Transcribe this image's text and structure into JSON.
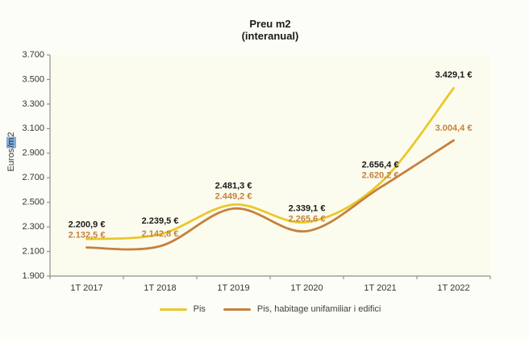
{
  "y_axis_title": {
    "pre": "Euros",
    "highlight": "/m",
    "post": "2"
  },
  "chart_data": {
    "type": "line",
    "title": "Preu m2",
    "subtitle": "(interanual)",
    "ylabel": "Euros/m2",
    "categories": [
      "1T 2017",
      "1T 2018",
      "1T 2019",
      "1T 2020",
      "1T 2021",
      "1T 2022"
    ],
    "series": [
      {
        "name": "Pis",
        "color": "#ebc72d",
        "label_color": "#1a1a1a",
        "values": [
          2200.9,
          2239.5,
          2481.3,
          2339.1,
          2656.4,
          3429.1
        ],
        "point_labels": [
          "2.200,9 €",
          "2.239,5 €",
          "2.481,3 €",
          "2.339,1 €",
          "2.656,4 €",
          "3.429,1 €"
        ]
      },
      {
        "name": "Pis, habitage unifamiliar i edifici",
        "color": "#c5813e",
        "label_color": "#c5813e",
        "values": [
          2132.5,
          2142.8,
          2449.2,
          2265.6,
          2620.2,
          3004.4
        ],
        "point_labels": [
          "2.132,5 €",
          "2.142,8 €",
          "2.449,2 €",
          "2.265,6 €",
          "2.620,2 €",
          "3.004,4 €"
        ]
      }
    ],
    "ylim": [
      1900,
      3700
    ],
    "ytick_step": 200,
    "ytick_labels": [
      "1.900",
      "2.100",
      "2.300",
      "2.500",
      "2.700",
      "2.900",
      "3.100",
      "3.300",
      "3.500",
      "3.700"
    ],
    "grid": false,
    "legend_position": "bottom",
    "colors": {
      "plot_background": "#fcfcee",
      "chart_background": "#fdfdf8",
      "axis": "#909090",
      "tick_text": "#333333"
    }
  }
}
